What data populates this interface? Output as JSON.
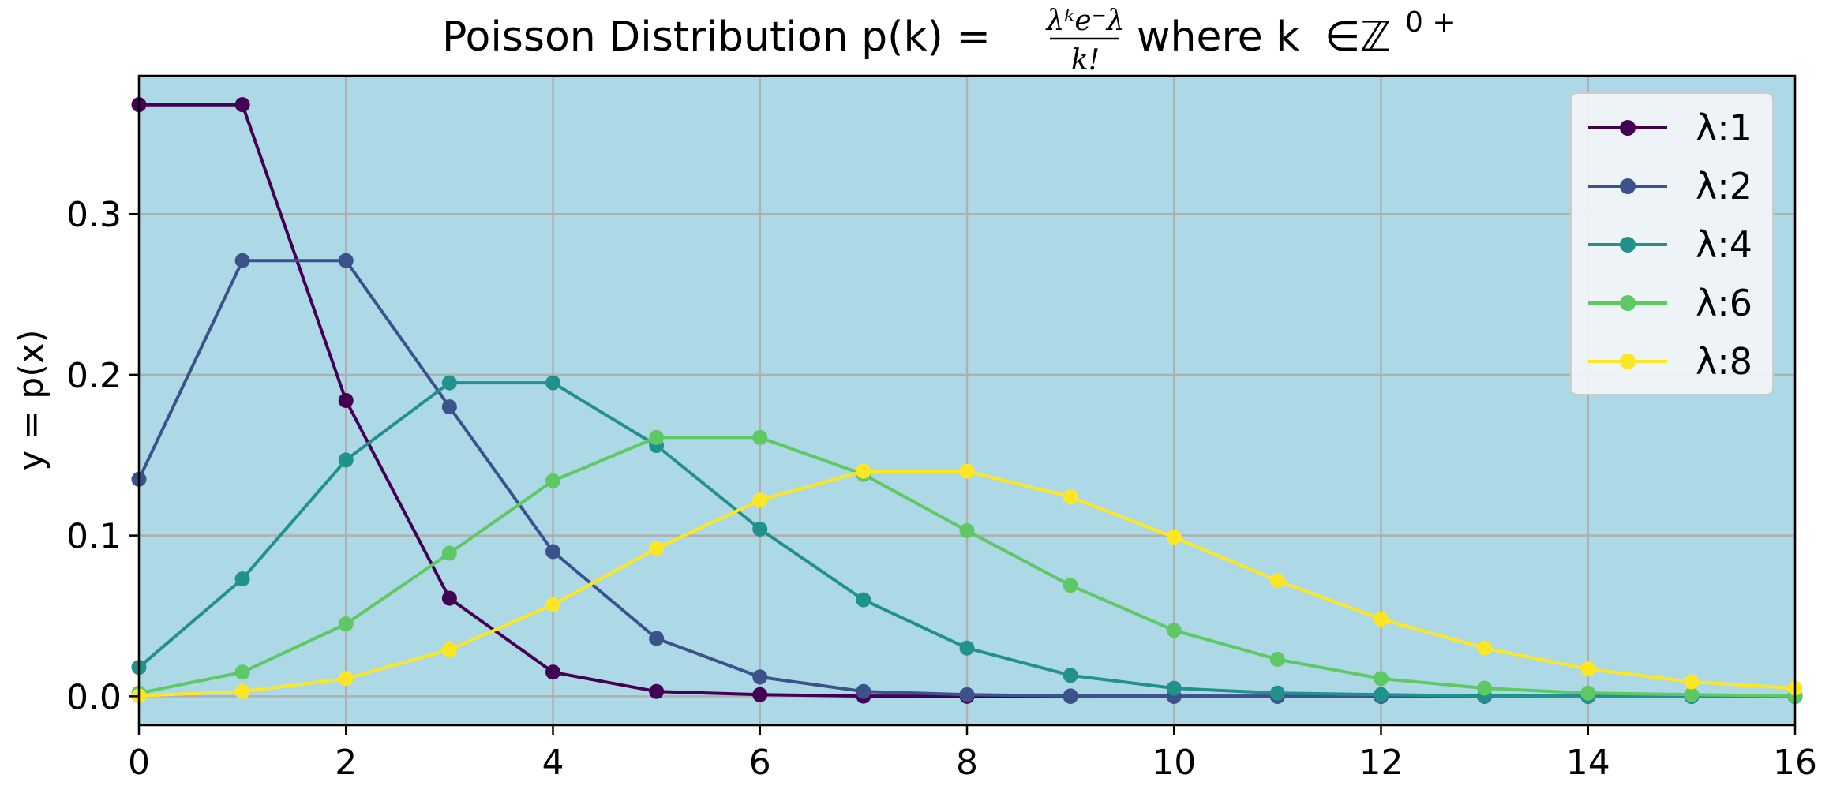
{
  "chart_data": {
    "type": "line",
    "title": {
      "prefix": "Poisson Distribution p(k) = ",
      "fraction_numerator": "λᵏe⁻λ",
      "fraction_denominator": "k!",
      "suffix": " where k ",
      "set_symbol": "∈ℤ",
      "set_superscript": "0 +"
    },
    "xlabel": "",
    "ylabel": "y = p(x)",
    "xlim": [
      0,
      16
    ],
    "ylim": [
      -0.018,
      0.386
    ],
    "xticks": [
      0,
      2,
      4,
      6,
      8,
      10,
      12,
      14,
      16
    ],
    "yticks": [
      0.0,
      0.1,
      0.2,
      0.3
    ],
    "ytick_labels": [
      "0.0",
      "0.1",
      "0.2",
      "0.3"
    ],
    "grid": true,
    "background": "#add8e6",
    "legend_position": "top-right",
    "x": [
      0,
      1,
      2,
      3,
      4,
      5,
      6,
      7,
      8,
      9,
      10,
      11,
      12,
      13,
      14,
      15,
      16
    ],
    "series": [
      {
        "name": "λ:1",
        "color": "#440154",
        "values": [
          0.368,
          0.368,
          0.184,
          0.061,
          0.015,
          0.003,
          0.001,
          0.0001,
          0.0,
          0.0,
          0.0,
          0.0,
          0.0,
          0.0,
          0.0,
          0.0,
          0.0
        ]
      },
      {
        "name": "λ:2",
        "color": "#3b528b",
        "values": [
          0.135,
          0.271,
          0.271,
          0.18,
          0.09,
          0.036,
          0.012,
          0.003,
          0.001,
          0.0002,
          0.0,
          0.0,
          0.0,
          0.0,
          0.0,
          0.0,
          0.0
        ]
      },
      {
        "name": "λ:4",
        "color": "#21918c",
        "values": [
          0.018,
          0.073,
          0.147,
          0.195,
          0.195,
          0.156,
          0.104,
          0.06,
          0.03,
          0.013,
          0.005,
          0.002,
          0.001,
          0.0002,
          0.0001,
          0.0,
          0.0
        ]
      },
      {
        "name": "λ:6",
        "color": "#5ec962",
        "values": [
          0.002,
          0.015,
          0.045,
          0.089,
          0.134,
          0.161,
          0.161,
          0.138,
          0.103,
          0.069,
          0.041,
          0.023,
          0.011,
          0.005,
          0.002,
          0.001,
          0.0003
        ]
      },
      {
        "name": "λ:8",
        "color": "#fde725",
        "values": [
          0.0003,
          0.003,
          0.011,
          0.029,
          0.057,
          0.092,
          0.122,
          0.14,
          0.14,
          0.124,
          0.099,
          0.072,
          0.048,
          0.03,
          0.017,
          0.009,
          0.005
        ]
      }
    ]
  }
}
